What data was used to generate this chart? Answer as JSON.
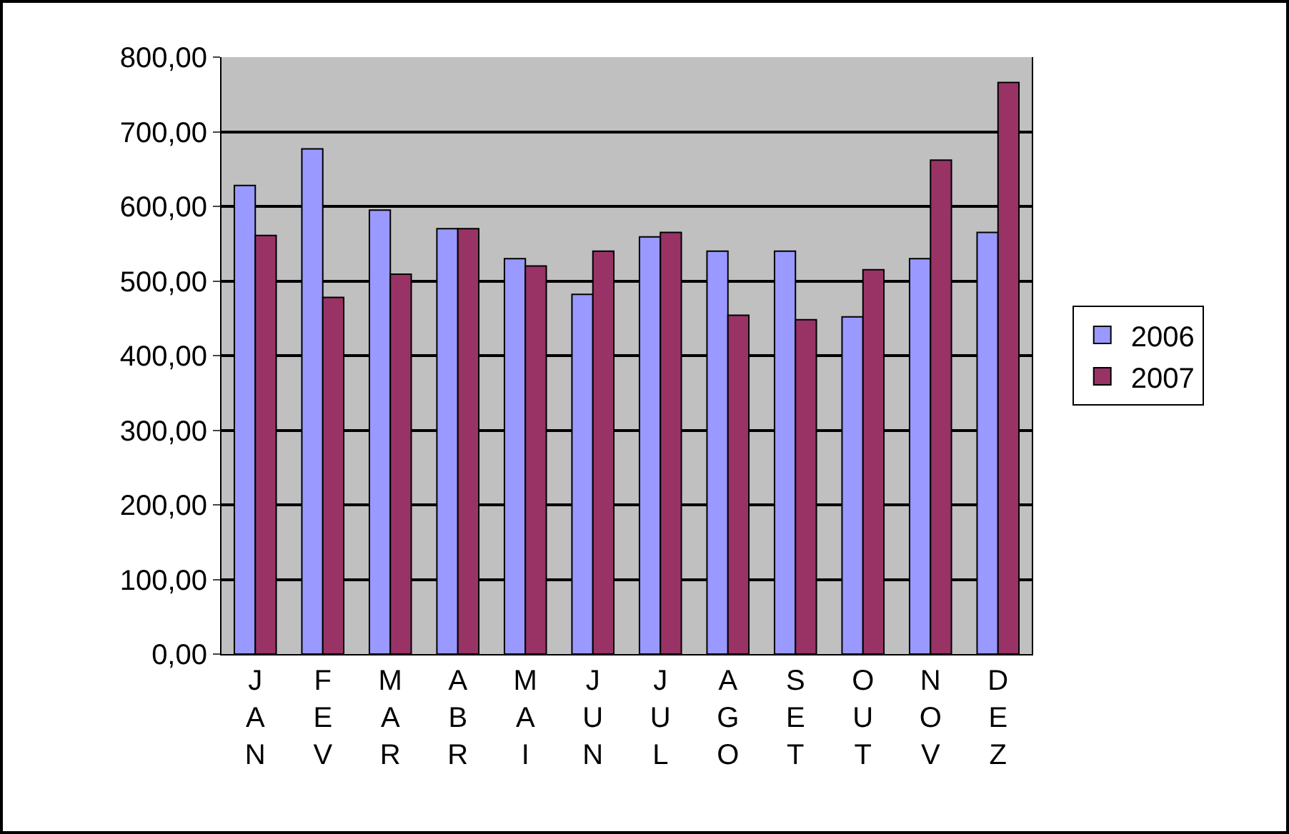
{
  "chart_data": {
    "type": "bar",
    "categories": [
      "JAN",
      "FEV",
      "MAR",
      "ABR",
      "MAI",
      "JUN",
      "JUL",
      "AGO",
      "SET",
      "OUT",
      "NOV",
      "DEZ"
    ],
    "series": [
      {
        "name": "2006",
        "color": "#9999ff",
        "values": [
          628,
          677,
          595,
          570,
          530,
          482,
          559,
          540,
          540,
          452,
          530,
          565
        ]
      },
      {
        "name": "2007",
        "color": "#993366",
        "values": [
          561,
          478,
          509,
          570,
          520,
          540,
          565,
          454,
          448,
          515,
          662,
          766
        ]
      }
    ],
    "ylim": [
      0,
      800
    ],
    "yticks": [
      {
        "value": 0,
        "label": "0,00"
      },
      {
        "value": 100,
        "label": "100,00"
      },
      {
        "value": 200,
        "label": "200,00"
      },
      {
        "value": 300,
        "label": "300,00"
      },
      {
        "value": 400,
        "label": "400,00"
      },
      {
        "value": 500,
        "label": "500,00"
      },
      {
        "value": 600,
        "label": "600,00"
      },
      {
        "value": 700,
        "label": "700,00"
      },
      {
        "value": 800,
        "label": "800,00"
      }
    ],
    "grid": "y",
    "legend": "right"
  }
}
